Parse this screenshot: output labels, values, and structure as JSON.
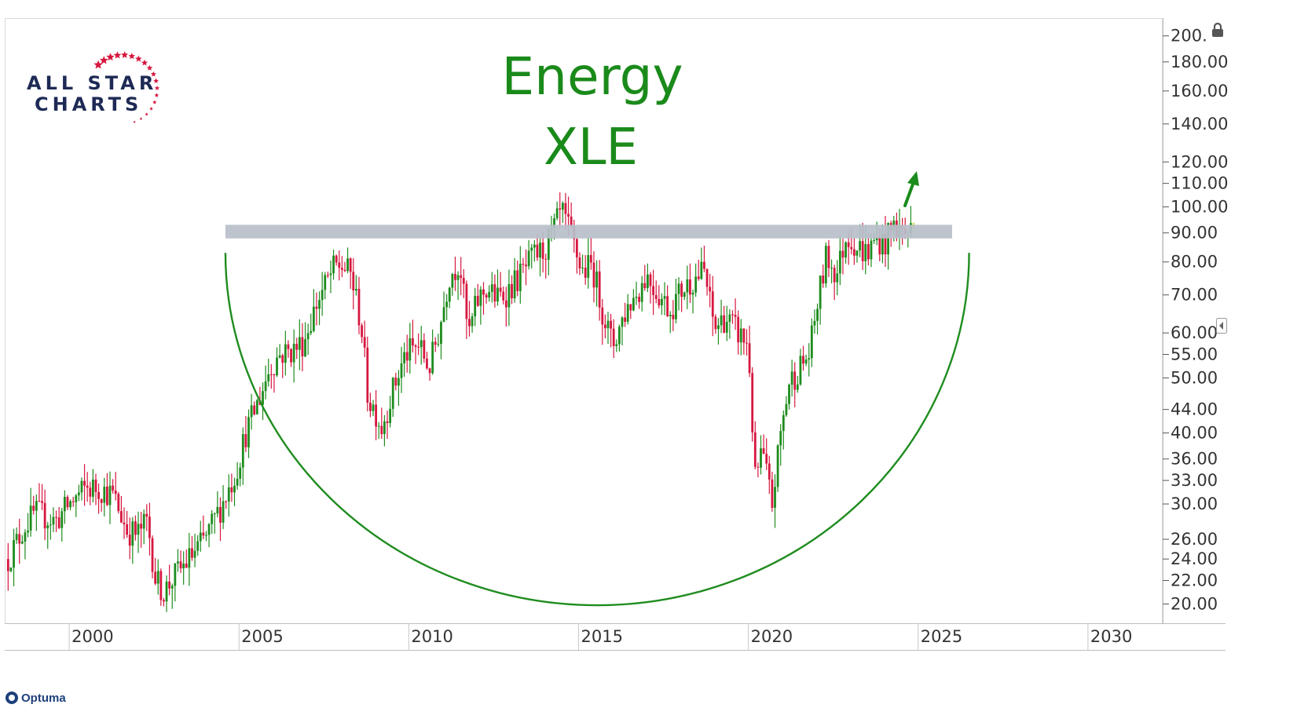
{
  "chart_data": {
    "type": "candlestick",
    "title": "Energy",
    "subtitle": "XLE",
    "x_ticks": [
      "2000",
      "2005",
      "2010",
      "2015",
      "2020",
      "2025",
      "2030"
    ],
    "y_ticks": [
      "200.",
      "180.00",
      "160.00",
      "140.00",
      "120.00",
      "110.00",
      "100.00",
      "90.00",
      "80.00",
      "70.00",
      "60.00",
      "55.00",
      "50.00",
      "44.00",
      "40.00",
      "36.00",
      "33.00",
      "30.00",
      "26.00",
      "24.00",
      "22.00",
      "20.00"
    ],
    "y_scale": "log",
    "y_range": [
      18.5,
      215
    ],
    "x_range": [
      1998.1,
      2032.2
    ],
    "resistance_level": [
      88,
      93
    ],
    "annotations": [
      "resistance-band",
      "rounding-bottom-arc",
      "breakout-arrow"
    ],
    "colors": {
      "up": "#1e8c1e",
      "down": "#d6173f",
      "latest": "#cfe05a",
      "title": "#1a8a1a",
      "band": "#b7bfca",
      "arc": "#1f8c1f"
    },
    "price_path_points": [
      [
        1998.2,
        24
      ],
      [
        1998.7,
        27.5
      ],
      [
        1999.0,
        29
      ],
      [
        1999.6,
        28
      ],
      [
        2000.0,
        30
      ],
      [
        2000.5,
        32
      ],
      [
        2000.9,
        32
      ],
      [
        2001.3,
        31
      ],
      [
        2001.7,
        27
      ],
      [
        2002.0,
        26.5
      ],
      [
        2002.3,
        28
      ],
      [
        2002.55,
        22
      ],
      [
        2002.8,
        21
      ],
      [
        2003.0,
        22
      ],
      [
        2003.4,
        23.5
      ],
      [
        2004.0,
        26
      ],
      [
        2004.5,
        30
      ],
      [
        2004.9,
        34
      ],
      [
        2005.2,
        40
      ],
      [
        2005.6,
        46
      ],
      [
        2005.9,
        52
      ],
      [
        2006.2,
        55
      ],
      [
        2006.6,
        56
      ],
      [
        2006.9,
        58
      ],
      [
        2007.3,
        68
      ],
      [
        2007.6,
        74
      ],
      [
        2007.8,
        78
      ],
      [
        2008.0,
        79
      ],
      [
        2008.3,
        76
      ],
      [
        2008.6,
        62
      ],
      [
        2008.8,
        46
      ],
      [
        2009.0,
        44
      ],
      [
        2009.2,
        41
      ],
      [
        2009.5,
        47
      ],
      [
        2009.9,
        55
      ],
      [
        2010.3,
        57
      ],
      [
        2010.6,
        52
      ],
      [
        2010.9,
        61
      ],
      [
        2011.2,
        76
      ],
      [
        2011.5,
        80
      ],
      [
        2011.75,
        59
      ],
      [
        2012.0,
        68
      ],
      [
        2012.3,
        72
      ],
      [
        2012.6,
        69
      ],
      [
        2012.9,
        71
      ],
      [
        2013.3,
        76
      ],
      [
        2013.7,
        82
      ],
      [
        2014.0,
        84
      ],
      [
        2014.3,
        92
      ],
      [
        2014.5,
        98
      ],
      [
        2014.8,
        88
      ],
      [
        2015.1,
        77
      ],
      [
        2015.4,
        79
      ],
      [
        2015.7,
        66
      ],
      [
        2016.0,
        57
      ],
      [
        2016.4,
        66
      ],
      [
        2016.8,
        72
      ],
      [
        2017.0,
        76
      ],
      [
        2017.3,
        71
      ],
      [
        2017.7,
        66
      ],
      [
        2018.0,
        71
      ],
      [
        2018.4,
        75
      ],
      [
        2018.7,
        77
      ],
      [
        2019.0,
        61
      ],
      [
        2019.3,
        64
      ],
      [
        2019.7,
        60
      ],
      [
        2020.0,
        57
      ],
      [
        2020.2,
        33
      ],
      [
        2020.4,
        37
      ],
      [
        2020.7,
        30
      ],
      [
        2020.95,
        40
      ],
      [
        2021.2,
        49
      ],
      [
        2021.5,
        52
      ],
      [
        2021.8,
        55
      ],
      [
        2022.0,
        66
      ],
      [
        2022.3,
        82
      ],
      [
        2022.6,
        76
      ],
      [
        2022.9,
        90
      ],
      [
        2023.2,
        85
      ],
      [
        2023.5,
        83
      ],
      [
        2023.8,
        88
      ],
      [
        2024.0,
        86
      ],
      [
        2024.3,
        93
      ],
      [
        2024.6,
        90
      ],
      [
        2024.9,
        92
      ]
    ]
  }
}
